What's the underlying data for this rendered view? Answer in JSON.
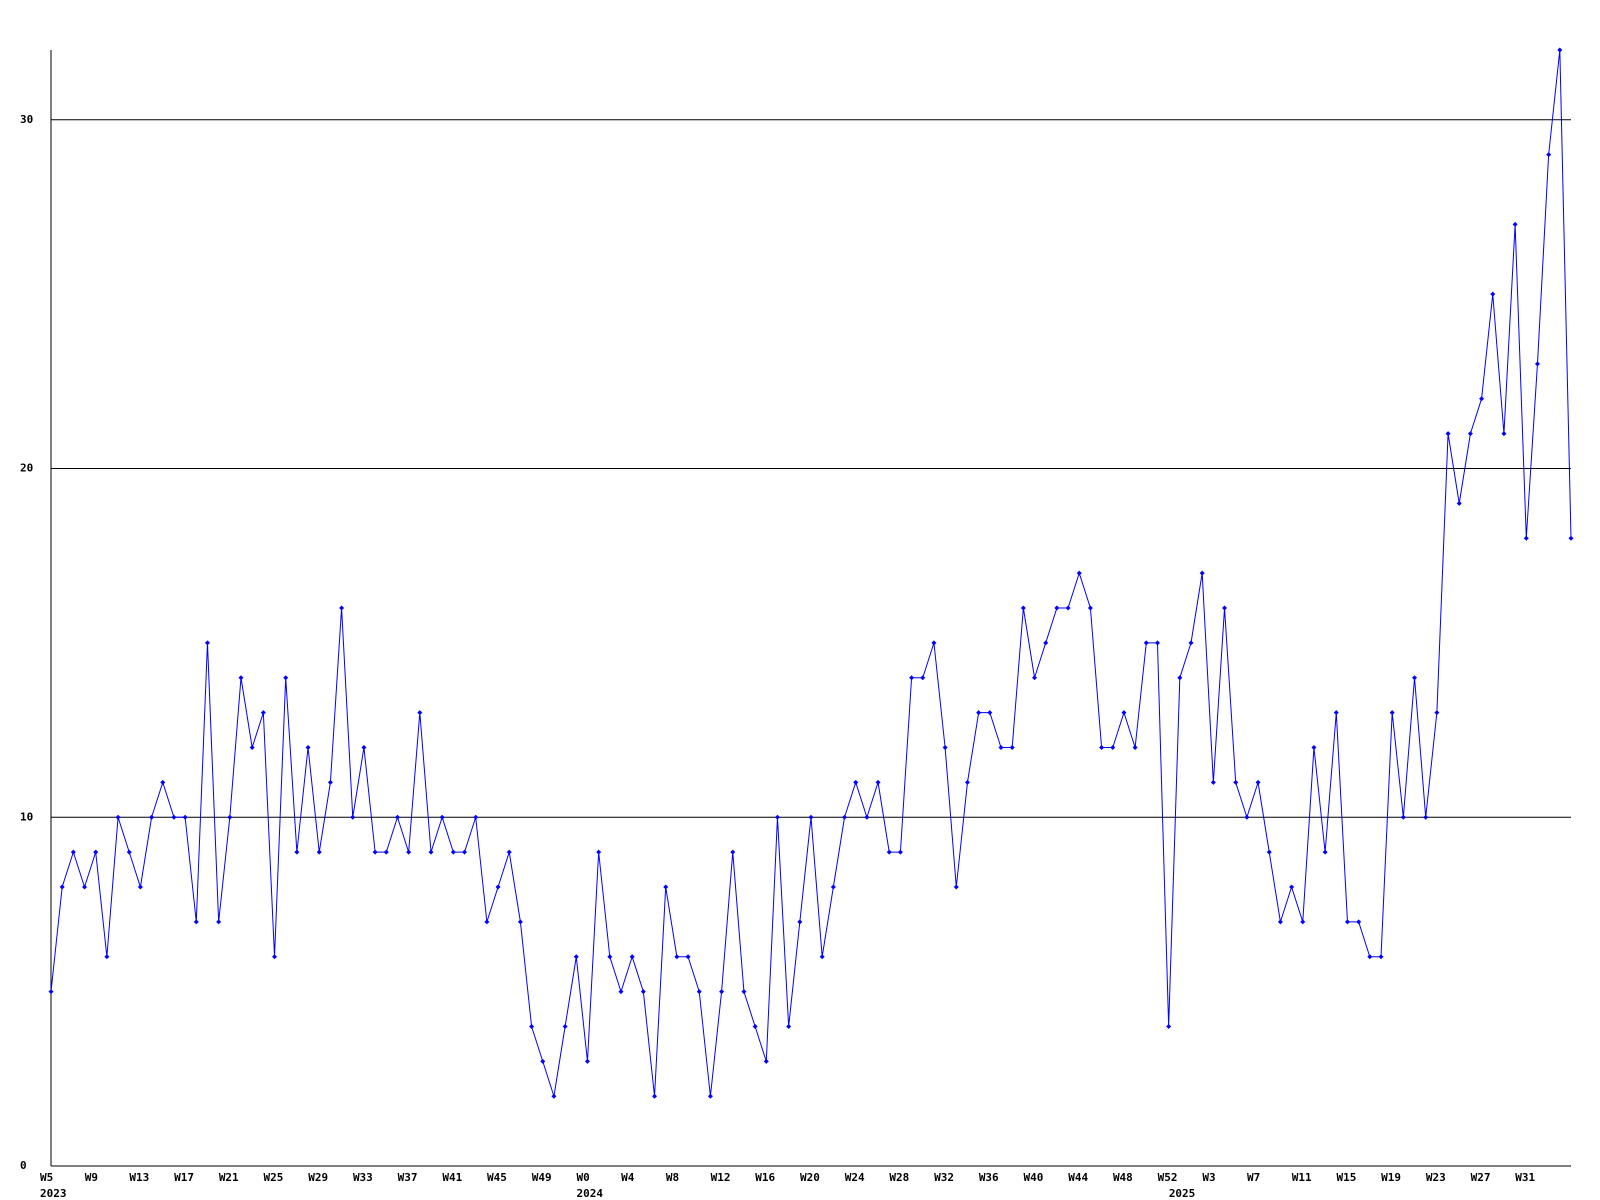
{
  "chart_data": {
    "type": "line",
    "color": "#0000ff",
    "grid": true,
    "ylim": [
      0,
      32
    ],
    "yticks": [
      0,
      10,
      20,
      30
    ],
    "categories": [
      "W5",
      null,
      null,
      null,
      "W9",
      null,
      null,
      null,
      "W13",
      null,
      null,
      null,
      "W17",
      null,
      null,
      null,
      "W21",
      null,
      null,
      null,
      "W25",
      null,
      null,
      null,
      "W29",
      null,
      null,
      null,
      "W33",
      null,
      null,
      null,
      "W37",
      null,
      null,
      null,
      "W41",
      null,
      null,
      null,
      "W45",
      null,
      null,
      null,
      "W49",
      null,
      null,
      null,
      "W0",
      null,
      null,
      null,
      "W4",
      null,
      null,
      null,
      "W8",
      null,
      null,
      null,
      "W12",
      null,
      null,
      null,
      "W16",
      null,
      null,
      null,
      "W20",
      null,
      null,
      null,
      "W24",
      null,
      null,
      null,
      "W28",
      null,
      null,
      null,
      "W32",
      null,
      null,
      null,
      "W36",
      null,
      null,
      null,
      "W40",
      null,
      null,
      null,
      "W44",
      null,
      null,
      null,
      "W48",
      null,
      null,
      null,
      "W52",
      null,
      null,
      null,
      "W3",
      null,
      null,
      null,
      "W7",
      null,
      null,
      null,
      "W11",
      null,
      null,
      null,
      "W15",
      null,
      null,
      null,
      "W19",
      null,
      null,
      null,
      "W23",
      null,
      null,
      null,
      "W27",
      null,
      null,
      null,
      "W31",
      null,
      null,
      null,
      null
    ],
    "year_categories": [
      "2023",
      null,
      null,
      null,
      null,
      null,
      null,
      null,
      null,
      null,
      null,
      null,
      null,
      null,
      null,
      null,
      null,
      null,
      null,
      null,
      null,
      null,
      null,
      null,
      null,
      null,
      null,
      null,
      null,
      null,
      null,
      null,
      null,
      null,
      null,
      null,
      null,
      null,
      null,
      null,
      null,
      null,
      null,
      null,
      null,
      null,
      null,
      null,
      "2024",
      null,
      null,
      null,
      null,
      null,
      null,
      null,
      null,
      null,
      null,
      null,
      null,
      null,
      null,
      null,
      null,
      null,
      null,
      null,
      null,
      null,
      null,
      null,
      null,
      null,
      null,
      null,
      null,
      null,
      null,
      null,
      null,
      null,
      null,
      null,
      null,
      null,
      null,
      null,
      null,
      null,
      null,
      null,
      null,
      null,
      null,
      null,
      null,
      null,
      null,
      null,
      null,
      "2025",
      null,
      null,
      null,
      null,
      null,
      null,
      null,
      null,
      null,
      null,
      null,
      null,
      null,
      null,
      null,
      null,
      null,
      null,
      null,
      null,
      null,
      null,
      null,
      null,
      null,
      null,
      null,
      null,
      null,
      null,
      null,
      null,
      null,
      null,
      null
    ],
    "values": [
      5,
      8,
      9,
      8,
      9,
      6,
      10,
      9,
      8,
      10,
      11,
      10,
      10,
      7,
      15,
      7,
      10,
      14,
      12,
      13,
      6,
      14,
      9,
      12,
      9,
      11,
      16,
      10,
      12,
      9,
      9,
      10,
      9,
      13,
      9,
      10,
      9,
      9,
      10,
      7,
      8,
      9,
      7,
      4,
      3,
      2,
      4,
      6,
      3,
      9,
      6,
      5,
      6,
      5,
      2,
      8,
      6,
      6,
      5,
      2,
      5,
      9,
      5,
      4,
      3,
      10,
      4,
      7,
      10,
      6,
      8,
      10,
      11,
      10,
      11,
      9,
      9,
      14,
      14,
      15,
      12,
      8,
      11,
      13,
      13,
      12,
      12,
      16,
      14,
      15,
      16,
      16,
      17,
      16,
      12,
      12,
      13,
      12,
      15,
      15,
      4,
      14,
      15,
      17,
      11,
      16,
      11,
      10,
      11,
      9,
      7,
      8,
      7,
      12,
      9,
      13,
      7,
      7,
      6,
      6,
      13,
      10,
      14,
      10,
      13,
      21,
      19,
      21,
      22,
      25,
      21,
      27,
      18,
      23,
      29,
      32,
      18
    ]
  }
}
